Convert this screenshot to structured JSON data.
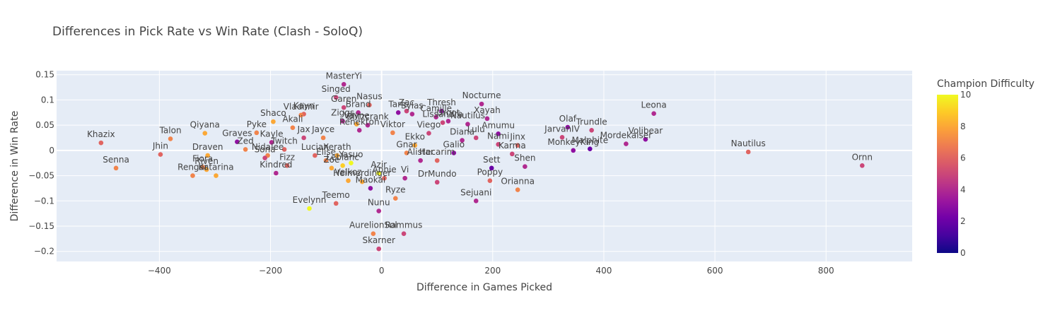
{
  "chart_data": {
    "type": "scatter",
    "title": "Differences in Pick Rate vs Win Rate (Clash - SoloQ)",
    "xlabel": "Difference in Games Picked",
    "ylabel": "Difference in Win Rate",
    "xlim": [
      -585,
      955
    ],
    "ylim": [
      -0.22,
      0.158
    ],
    "x_ticks": [
      -400,
      -200,
      0,
      200,
      400,
      600,
      800
    ],
    "y_ticks": [
      0.15,
      0.1,
      0.05,
      0,
      -0.05,
      -0.1,
      -0.15,
      -0.2
    ],
    "x_tick_labels": [
      "−400",
      "−200",
      "0",
      "200",
      "400",
      "600",
      "800"
    ],
    "y_tick_labels": [
      "0.15",
      "0.1",
      "0.05",
      "0",
      "−0.05",
      "−0.1",
      "−0.15",
      "−0.2"
    ],
    "colorbar": {
      "title": "Champion Difficulty",
      "min": 0,
      "max": 10,
      "ticks": [
        10,
        8,
        6,
        4,
        2,
        0
      ],
      "tick_labels": [
        "10",
        "8",
        "6",
        "4",
        "2",
        "0"
      ]
    },
    "points": [
      {
        "name": "MasterYi",
        "x": -68,
        "y": 0.131,
        "difficulty": 4
      },
      {
        "name": "Singed",
        "x": -82,
        "y": 0.105,
        "difficulty": 5
      },
      {
        "name": "Garen",
        "x": -68,
        "y": 0.085,
        "difficulty": 5
      },
      {
        "name": "Nasus",
        "x": -22,
        "y": 0.09,
        "difficulty": 6
      },
      {
        "name": "Brand",
        "x": -42,
        "y": 0.075,
        "difficulty": 4
      },
      {
        "name": "Taric",
        "x": 30,
        "y": 0.075,
        "difficulty": 3
      },
      {
        "name": "Zac",
        "x": 45,
        "y": 0.078,
        "difficulty": 5
      },
      {
        "name": "Sylas",
        "x": 55,
        "y": 0.072,
        "difficulty": 4
      },
      {
        "name": "Thresh",
        "x": 108,
        "y": 0.078,
        "difficulty": 3
      },
      {
        "name": "Camille",
        "x": 98,
        "y": 0.066,
        "difficulty": 4
      },
      {
        "name": "Urgot",
        "x": 120,
        "y": 0.058,
        "difficulty": 4
      },
      {
        "name": "Nocturne",
        "x": 180,
        "y": 0.092,
        "difficulty": 4
      },
      {
        "name": "Xayah",
        "x": 190,
        "y": 0.063,
        "difficulty": 4
      },
      {
        "name": "Nautilus",
        "x": 155,
        "y": 0.052,
        "difficulty": 4
      },
      {
        "name": "Kayn",
        "x": -140,
        "y": 0.072,
        "difficulty": 6
      },
      {
        "name": "Vladimir",
        "x": -145,
        "y": 0.07,
        "difficulty": 7
      },
      {
        "name": "Shaco",
        "x": -195,
        "y": 0.057,
        "difficulty": 8
      },
      {
        "name": "Akali",
        "x": -160,
        "y": 0.045,
        "difficulty": 7
      },
      {
        "name": "Pyke",
        "x": -225,
        "y": 0.035,
        "difficulty": 7
      },
      {
        "name": "Ziggs",
        "x": -70,
        "y": 0.058,
        "difficulty": 4
      },
      {
        "name": "Blitzcrank",
        "x": -25,
        "y": 0.05,
        "difficulty": 4
      },
      {
        "name": "Leona",
        "x": 490,
        "y": 0.073,
        "difficulty": 4
      },
      {
        "name": "Amumu",
        "x": 210,
        "y": 0.033,
        "difficulty": 3
      },
      {
        "name": "Viego",
        "x": 85,
        "y": 0.034,
        "difficulty": 5
      },
      {
        "name": "Olaf",
        "x": 335,
        "y": 0.046,
        "difficulty": 3
      },
      {
        "name": "Trundle",
        "x": 378,
        "y": 0.04,
        "difficulty": 5
      },
      {
        "name": "Volibear",
        "x": 475,
        "y": 0.022,
        "difficulty": 3
      },
      {
        "name": "JarvanIV",
        "x": 325,
        "y": 0.026,
        "difficulty": 5
      },
      {
        "name": "Mordekaiser",
        "x": 440,
        "y": 0.013,
        "difficulty": 4
      },
      {
        "name": "Khazix",
        "x": -505,
        "y": 0.015,
        "difficulty": 6
      },
      {
        "name": "Talon",
        "x": -380,
        "y": 0.023,
        "difficulty": 7
      },
      {
        "name": "Qiyana",
        "x": -318,
        "y": 0.034,
        "difficulty": 8
      },
      {
        "name": "Graves",
        "x": -260,
        "y": 0.017,
        "difficulty": 3
      },
      {
        "name": "Zed",
        "x": -245,
        "y": 0.002,
        "difficulty": 7
      },
      {
        "name": "Jhin",
        "x": -398,
        "y": -0.008,
        "difficulty": 6
      },
      {
        "name": "Draven",
        "x": -313,
        "y": -0.01,
        "difficulty": 8
      },
      {
        "name": "Senna",
        "x": -478,
        "y": -0.035,
        "difficulty": 7
      },
      {
        "name": "Fiora",
        "x": -322,
        "y": -0.033,
        "difficulty": 7
      },
      {
        "name": "Riven",
        "x": -315,
        "y": -0.038,
        "difficulty": 8
      },
      {
        "name": "Rengar",
        "x": -340,
        "y": -0.05,
        "difficulty": 7
      },
      {
        "name": "Katarina",
        "x": -298,
        "y": -0.05,
        "difficulty": 8
      },
      {
        "name": "Nidalee",
        "x": -205,
        "y": -0.01,
        "difficulty": 7
      },
      {
        "name": "Sona",
        "x": -210,
        "y": -0.015,
        "difficulty": 5
      },
      {
        "name": "Kindred",
        "x": -190,
        "y": -0.045,
        "difficulty": 4
      },
      {
        "name": "Twitch",
        "x": -175,
        "y": 0.002,
        "difficulty": 6
      },
      {
        "name": "Kayle",
        "x": -198,
        "y": 0.016,
        "difficulty": 4
      },
      {
        "name": "Fizz",
        "x": -170,
        "y": -0.03,
        "difficulty": 6
      },
      {
        "name": "Jax",
        "x": -140,
        "y": 0.025,
        "difficulty": 5
      },
      {
        "name": "Jayce",
        "x": -105,
        "y": 0.025,
        "difficulty": 7
      },
      {
        "name": "Lucian",
        "x": -120,
        "y": -0.01,
        "difficulty": 6
      },
      {
        "name": "Elise",
        "x": -100,
        "y": -0.02,
        "difficulty": 7
      },
      {
        "name": "Xerath",
        "x": -80,
        "y": -0.01,
        "difficulty": 8
      },
      {
        "name": "Zoe",
        "x": -90,
        "y": -0.035,
        "difficulty": 8
      },
      {
        "name": "Leblanc",
        "x": -70,
        "y": -0.03,
        "difficulty": 9
      },
      {
        "name": "Yasuo",
        "x": -55,
        "y": -0.025,
        "difficulty": 10
      },
      {
        "name": "Azir",
        "x": -5,
        "y": -0.045,
        "difficulty": 10
      },
      {
        "name": "Annie",
        "x": 5,
        "y": -0.055,
        "difficulty": 6
      },
      {
        "name": "Vi",
        "x": 42,
        "y": -0.055,
        "difficulty": 4
      },
      {
        "name": "Heimerdinger",
        "x": -35,
        "y": -0.062,
        "difficulty": 8
      },
      {
        "name": "Velkoz",
        "x": -60,
        "y": -0.06,
        "difficulty": 8
      },
      {
        "name": "Maokai",
        "x": -20,
        "y": -0.075,
        "difficulty": 3
      },
      {
        "name": "Teemo",
        "x": -82,
        "y": -0.105,
        "difficulty": 6
      },
      {
        "name": "Ryze",
        "x": 25,
        "y": -0.095,
        "difficulty": 7
      },
      {
        "name": "Evelynn",
        "x": -130,
        "y": -0.115,
        "difficulty": 10
      },
      {
        "name": "Nunu",
        "x": -5,
        "y": -0.12,
        "difficulty": 4
      },
      {
        "name": "AurelionSol",
        "x": -15,
        "y": -0.165,
        "difficulty": 7
      },
      {
        "name": "Rammus",
        "x": 40,
        "y": -0.165,
        "difficulty": 5
      },
      {
        "name": "Skarner",
        "x": -5,
        "y": -0.195,
        "difficulty": 5
      },
      {
        "name": "DrMundo",
        "x": 100,
        "y": -0.063,
        "difficulty": 5
      },
      {
        "name": "Poppy",
        "x": 195,
        "y": -0.06,
        "difficulty": 6
      },
      {
        "name": "Orianna",
        "x": 245,
        "y": -0.078,
        "difficulty": 7
      },
      {
        "name": "Sejuani",
        "x": 170,
        "y": -0.1,
        "difficulty": 4
      },
      {
        "name": "Sett",
        "x": 198,
        "y": -0.035,
        "difficulty": 2
      },
      {
        "name": "Shen",
        "x": 258,
        "y": -0.032,
        "difficulty": 4
      },
      {
        "name": "Jinx",
        "x": 245,
        "y": 0.01,
        "difficulty": 6
      },
      {
        "name": "Nami",
        "x": 210,
        "y": 0.012,
        "difficulty": 5
      },
      {
        "name": "Karma",
        "x": 235,
        "y": -0.007,
        "difficulty": 5
      },
      {
        "name": "MonkeyKing",
        "x": 345,
        "y": 0.0,
        "difficulty": 3
      },
      {
        "name": "Malphite",
        "x": 375,
        "y": 0.003,
        "difficulty": 2
      },
      {
        "name": "Nautilus",
        "x": 660,
        "y": -0.003,
        "difficulty": 6
      },
      {
        "name": "Ornn",
        "x": 865,
        "y": -0.03,
        "difficulty": 5
      },
      {
        "name": "Lissandra",
        "x": 110,
        "y": 0.055,
        "difficulty": 5
      },
      {
        "name": "Vayne",
        "x": -45,
        "y": 0.052,
        "difficulty": 8
      },
      {
        "name": "Renekton",
        "x": -40,
        "y": 0.04,
        "difficulty": 4
      },
      {
        "name": "Viktor",
        "x": 20,
        "y": 0.035,
        "difficulty": 7
      },
      {
        "name": "Ekko",
        "x": 60,
        "y": 0.01,
        "difficulty": 8
      },
      {
        "name": "Gnar",
        "x": 45,
        "y": -0.005,
        "difficulty": 7
      },
      {
        "name": "Alistar",
        "x": 70,
        "y": -0.02,
        "difficulty": 4
      },
      {
        "name": "Galio",
        "x": 130,
        "y": -0.005,
        "difficulty": 3
      },
      {
        "name": "Hecarim",
        "x": 100,
        "y": -0.02,
        "difficulty": 6
      },
      {
        "name": "Diana",
        "x": 145,
        "y": 0.02,
        "difficulty": 4
      },
      {
        "name": "Lulu",
        "x": 170,
        "y": 0.025,
        "difficulty": 5
      }
    ]
  }
}
